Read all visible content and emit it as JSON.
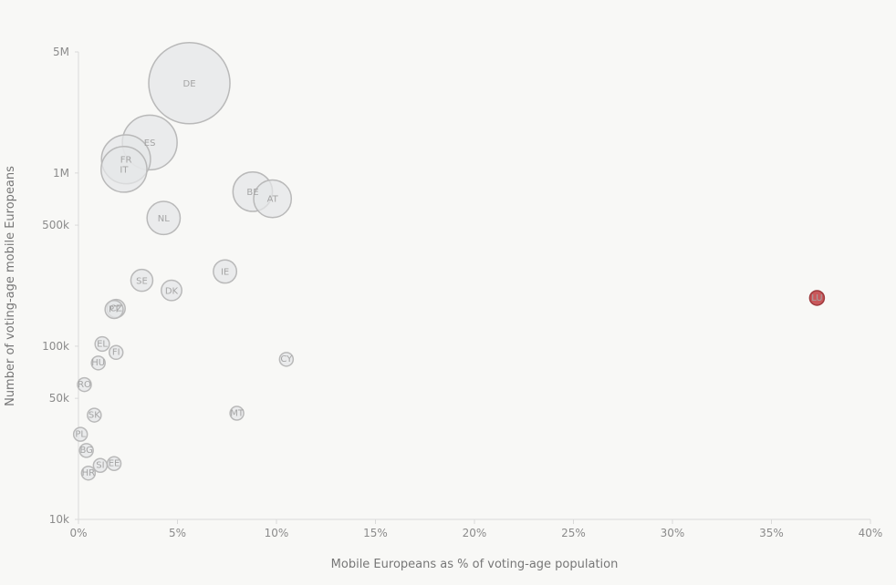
{
  "chart_data": {
    "type": "scatter",
    "title": "",
    "xlabel": "Mobile Europeans as % of voting-age population",
    "ylabel": "Number of voting-age mobile Europeans",
    "x_scale": "linear",
    "y_scale": "log",
    "xlim": [
      0,
      40
    ],
    "ylim": [
      10000,
      5000000
    ],
    "x_ticks": [
      0,
      5,
      10,
      15,
      20,
      25,
      30,
      35,
      40
    ],
    "x_tick_labels": [
      "0%",
      "5%",
      "10%",
      "15%",
      "20%",
      "25%",
      "30%",
      "35%",
      "40%"
    ],
    "y_ticks": [
      10000,
      50000,
      100000,
      500000,
      1000000,
      5000000
    ],
    "y_tick_labels": [
      "10k",
      "50k",
      "100k",
      "500k",
      "1M",
      "5M"
    ],
    "grid": false,
    "bubble_size_encodes": "Number of voting-age mobile Europeans",
    "colors": {
      "bubble_fill": "#e5e6e7",
      "bubble_stroke": "#b9b9b9",
      "highlight_fill": "#c9585b",
      "highlight_stroke": "#9e3a3d",
      "axis": "#dadada"
    },
    "points": [
      {
        "label": "DE",
        "x": 5.6,
        "y": 3300000
      },
      {
        "label": "ES",
        "x": 3.6,
        "y": 1500000
      },
      {
        "label": "FR",
        "x": 2.4,
        "y": 1200000
      },
      {
        "label": "IT",
        "x": 2.3,
        "y": 1050000
      },
      {
        "label": "BE",
        "x": 8.8,
        "y": 780000
      },
      {
        "label": "AT",
        "x": 9.8,
        "y": 710000
      },
      {
        "label": "NL",
        "x": 4.3,
        "y": 550000
      },
      {
        "label": "IE",
        "x": 7.4,
        "y": 270000
      },
      {
        "label": "SE",
        "x": 3.2,
        "y": 240000
      },
      {
        "label": "DK",
        "x": 4.7,
        "y": 210000
      },
      {
        "label": "CZ",
        "x": 1.9,
        "y": 165000
      },
      {
        "label": "PT",
        "x": 1.8,
        "y": 163000
      },
      {
        "label": "LU",
        "x": 37.3,
        "y": 190000,
        "highlight": true
      },
      {
        "label": "EL",
        "x": 1.2,
        "y": 103000
      },
      {
        "label": "FI",
        "x": 1.9,
        "y": 92000
      },
      {
        "label": "HU",
        "x": 1.0,
        "y": 80000
      },
      {
        "label": "CY",
        "x": 10.5,
        "y": 84000
      },
      {
        "label": "RO",
        "x": 0.3,
        "y": 60000
      },
      {
        "label": "SK",
        "x": 0.8,
        "y": 40000
      },
      {
        "label": "MT",
        "x": 8.0,
        "y": 41000
      },
      {
        "label": "PL",
        "x": 0.1,
        "y": 31000
      },
      {
        "label": "BG",
        "x": 0.4,
        "y": 25000
      },
      {
        "label": "EE",
        "x": 1.8,
        "y": 21000
      },
      {
        "label": "SI",
        "x": 1.1,
        "y": 20500
      },
      {
        "label": "HR",
        "x": 0.5,
        "y": 18500
      }
    ]
  }
}
